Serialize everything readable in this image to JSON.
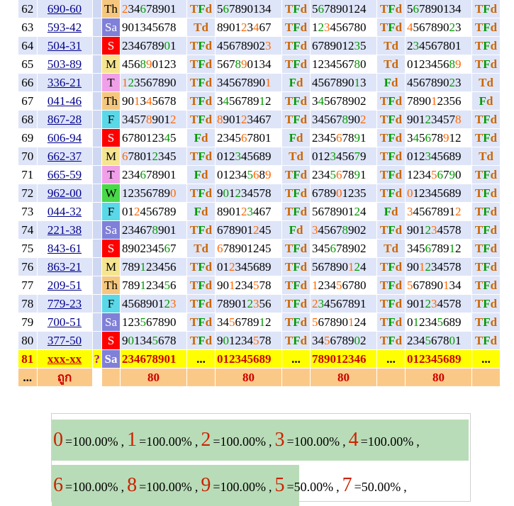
{
  "colors": {
    "tf_orange": "#cc6600",
    "tf_green": "#009900",
    "header_blue": "#dfe5f8",
    "pending_yellow": "#ffff00",
    "summary_orange": "#fbc987",
    "stat_green": "#b9dcb8"
  },
  "rows": [
    {
      "no": "62",
      "code": "690-60",
      "day": "Th",
      "day_class": "d-Th",
      "cols": [
        {
          "num": "234678901",
          "hl": [
            6,
            2
          ],
          "tf": "TFd"
        },
        {
          "num": "567890134",
          "hl": [
            6
          ],
          "tf": "TFd"
        },
        {
          "num": "567890124",
          "hl": [
            6
          ],
          "tf": "TFd"
        },
        {
          "num": "567890134",
          "hl": [
            6
          ],
          "tf": "TFd"
        }
      ]
    },
    {
      "no": "63",
      "code": "593-42",
      "day": "Sa",
      "day_class": "d-Sa",
      "cols": [
        {
          "num": "901345678",
          "hl": [],
          "tf": "Td"
        },
        {
          "num": "890123467",
          "hl": [
            4,
            2
          ],
          "tf": "TFd"
        },
        {
          "num": "123456780",
          "hl": [
            3,
            2
          ],
          "tf": "TFd"
        },
        {
          "num": "456789023",
          "hl": [
            4,
            2
          ],
          "tf": "TFd"
        }
      ]
    },
    {
      "no": "64",
      "code": "504-31",
      "day": "S",
      "day_class": "d-S",
      "cols": [
        {
          "num": "234678901",
          "hl": [
            0
          ],
          "tf": "TFd"
        },
        {
          "num": "456789023",
          "hl": [
            3
          ],
          "tf": "TFd"
        },
        {
          "num": "678901235",
          "hl": [
            3
          ],
          "tf": "Td"
        },
        {
          "num": "234567801",
          "hl": [
            3
          ],
          "tf": "TFd"
        }
      ]
    },
    {
      "no": "65",
      "code": "503-89",
      "day": "M",
      "day_class": "d-M",
      "cols": [
        {
          "num": "456890123",
          "hl": [
            8,
            9
          ],
          "tf": "TFd"
        },
        {
          "num": "567890134",
          "hl": [
            8,
            9
          ],
          "tf": "TFd"
        },
        {
          "num": "123456780",
          "hl": [
            8
          ],
          "tf": "Td"
        },
        {
          "num": "012345689",
          "hl": [
            8,
            9
          ],
          "tf": "TFd"
        }
      ]
    },
    {
      "no": "66",
      "code": "336-21",
      "day": "T",
      "day_class": "d-T",
      "cols": [
        {
          "num": "123567890",
          "hl": [
            1,
            2
          ],
          "tf": "TFd"
        },
        {
          "num": "345678901",
          "hl": [
            1
          ],
          "tf": "Fd"
        },
        {
          "num": "456789013",
          "hl": [
            1
          ],
          "tf": "Fd"
        },
        {
          "num": "456789023",
          "hl": [
            2
          ],
          "tf": "Td"
        }
      ]
    },
    {
      "no": "67",
      "code": "041-46",
      "day": "Th",
      "day_class": "d-Th",
      "cols": [
        {
          "num": "901345678",
          "hl": [
            4,
            1
          ],
          "tf": "TFd"
        },
        {
          "num": "345678912",
          "hl": [
            4,
            1
          ],
          "tf": "TFd"
        },
        {
          "num": "345678902",
          "hl": [
            4
          ],
          "tf": "TFd"
        },
        {
          "num": "789012356",
          "hl": [
            1
          ],
          "tf": "Fd"
        }
      ]
    },
    {
      "no": "68",
      "code": "867-28",
      "day": "F",
      "day_class": "d-F",
      "cols": [
        {
          "num": "345789012",
          "hl": [
            8,
            2
          ],
          "tf": "TFd"
        },
        {
          "num": "890123467",
          "hl": [
            8,
            2
          ],
          "tf": "TFd"
        },
        {
          "num": "345678902",
          "hl": [
            8,
            2
          ],
          "tf": "TFd"
        },
        {
          "num": "901234578",
          "hl": [
            2,
            8
          ],
          "tf": "TFd"
        }
      ]
    },
    {
      "no": "69",
      "code": "606-94",
      "day": "S",
      "day_class": "d-S",
      "cols": [
        {
          "num": "678012345",
          "hl": [
            4
          ],
          "tf": "Fd"
        },
        {
          "num": "234567801",
          "hl": [
            6
          ],
          "tf": "Fd"
        },
        {
          "num": "234567891",
          "hl": [
            6,
            9
          ],
          "tf": "TFd"
        },
        {
          "num": "345678912",
          "hl": [
            4,
            6,
            9
          ],
          "tf": "TFd"
        }
      ]
    },
    {
      "no": "70",
      "code": "662-37",
      "day": "M",
      "day_class": "d-M",
      "cols": [
        {
          "num": "678012345",
          "hl": [
            6,
            2
          ],
          "tf": "TFd"
        },
        {
          "num": "012345689",
          "hl": [
            3
          ],
          "tf": "Td"
        },
        {
          "num": "012345679",
          "hl": [
            3,
            7
          ],
          "tf": "TFd"
        },
        {
          "num": "012345689",
          "hl": [
            3
          ],
          "tf": "Td"
        }
      ]
    },
    {
      "no": "71",
      "code": "665-59",
      "day": "T",
      "day_class": "d-T",
      "cols": [
        {
          "num": "234678901",
          "hl": [
            6
          ],
          "tf": "Fd"
        },
        {
          "num": "012345689",
          "hl": [
            5,
            6,
            9
          ],
          "tf": "TFd"
        },
        {
          "num": "234567891",
          "hl": [
            5,
            6,
            9
          ],
          "tf": "TFd"
        },
        {
          "num": "123456790",
          "hl": [
            5,
            6,
            9
          ],
          "tf": "TFd"
        }
      ]
    },
    {
      "no": "72",
      "code": "962-00",
      "day": "W",
      "day_class": "d-W",
      "cols": [
        {
          "num": "123567890",
          "hl": [
            0
          ],
          "tf": "TFd"
        },
        {
          "num": "901234578",
          "hl": [
            0,
            2
          ],
          "tf": "TFd"
        },
        {
          "num": "678901235",
          "hl": [
            0
          ],
          "tf": "TFd"
        },
        {
          "num": "012345689",
          "hl": [
            0
          ],
          "tf": "TFd"
        }
      ]
    },
    {
      "no": "73",
      "code": "044-32",
      "day": "F",
      "day_class": "d-F",
      "cols": [
        {
          "num": "012456789",
          "hl": [
            2
          ],
          "tf": "Fd"
        },
        {
          "num": "890123467",
          "hl": [
            2,
            3
          ],
          "tf": "TFd"
        },
        {
          "num": "567890124",
          "hl": [
            2
          ],
          "tf": "Fd"
        },
        {
          "num": "345678912",
          "hl": [
            3,
            2
          ],
          "tf": "TFd"
        }
      ]
    },
    {
      "no": "74",
      "code": "221-38",
      "day": "Sa",
      "day_class": "d-Sa",
      "cols": [
        {
          "num": "234678901",
          "hl": [
            8
          ],
          "tf": "TFd"
        },
        {
          "num": "678901245",
          "hl": [
            2
          ],
          "tf": "Fd"
        },
        {
          "num": "345678902",
          "hl": [
            3,
            8
          ],
          "tf": "TFd"
        },
        {
          "num": "901234578",
          "hl": [
            2,
            3
          ],
          "tf": "TFd"
        }
      ]
    },
    {
      "no": "75",
      "code": "843-61",
      "day": "S",
      "day_class": "d-S",
      "cols": [
        {
          "num": "890234567",
          "hl": [
            6
          ],
          "tf": "Td"
        },
        {
          "num": "678901245",
          "hl": [
            6
          ],
          "tf": "TFd"
        },
        {
          "num": "345678902",
          "hl": [
            6
          ],
          "tf": "Td"
        },
        {
          "num": "345678912",
          "hl": [
            6,
            1
          ],
          "tf": "TFd"
        }
      ]
    },
    {
      "no": "76",
      "code": "863-21",
      "day": "M",
      "day_class": "d-M",
      "cols": [
        {
          "num": "789123456",
          "hl": [
            1
          ],
          "tf": "TFd"
        },
        {
          "num": "012345689",
          "hl": [
            2
          ],
          "tf": "TFd"
        },
        {
          "num": "567890124",
          "hl": [
            1,
            2
          ],
          "tf": "TFd"
        },
        {
          "num": "901234578",
          "hl": [
            1,
            2
          ],
          "tf": "TFd"
        }
      ]
    },
    {
      "no": "77",
      "code": "209-51",
      "day": "Th",
      "day_class": "d-Th",
      "cols": [
        {
          "num": "789123456",
          "hl": [
            5,
            1
          ],
          "tf": "TFd"
        },
        {
          "num": "901234578",
          "hl": [
            5,
            1
          ],
          "tf": "TFd"
        },
        {
          "num": "123456780",
          "hl": [
            5,
            1
          ],
          "tf": "TFd"
        },
        {
          "num": "567890134",
          "hl": [
            5,
            1
          ],
          "tf": "TFd"
        }
      ]
    },
    {
      "no": "78",
      "code": "779-23",
      "day": "F",
      "day_class": "d-F",
      "cols": [
        {
          "num": "456890123",
          "hl": [
            2,
            3
          ],
          "tf": "TFd"
        },
        {
          "num": "789012356",
          "hl": [
            2,
            3
          ],
          "tf": "TFd"
        },
        {
          "num": "234567891",
          "hl": [
            2,
            3
          ],
          "tf": "TFd"
        },
        {
          "num": "901234578",
          "hl": [
            2,
            3
          ],
          "tf": "TFd"
        }
      ]
    },
    {
      "no": "79",
      "code": "700-51",
      "day": "Sa",
      "day_class": "d-Sa",
      "cols": [
        {
          "num": "123567890",
          "hl": [
            5
          ],
          "tf": "TFd"
        },
        {
          "num": "345678912",
          "hl": [
            5,
            1
          ],
          "tf": "TFd"
        },
        {
          "num": "567890124",
          "hl": [
            5,
            1
          ],
          "tf": "TFd"
        },
        {
          "num": "012345689",
          "hl": [
            5,
            1
          ],
          "tf": "TFd"
        }
      ]
    },
    {
      "no": "80",
      "code": "377-50",
      "day": "S",
      "day_class": "d-S",
      "cols": [
        {
          "num": "901345678",
          "hl": [
            5,
            0
          ],
          "tf": "TFd"
        },
        {
          "num": "901234578",
          "hl": [
            5,
            0
          ],
          "tf": "TFd"
        },
        {
          "num": "345678902",
          "hl": [
            5,
            0
          ],
          "tf": "TFd"
        },
        {
          "num": "234567801",
          "hl": [
            5,
            0
          ],
          "tf": "TFd"
        }
      ]
    }
  ],
  "pending": {
    "no": "81",
    "code": "xxx-xx",
    "q": "?",
    "day": "Sa",
    "nums": [
      "234678901",
      "012345689",
      "789012346",
      "012345689"
    ],
    "dots": "..."
  },
  "summary": {
    "dots": "...",
    "label": "ถูก",
    "values": [
      "80",
      "80",
      "80",
      "80"
    ]
  },
  "stats_row1": [
    {
      "digit": "0",
      "pct": "=100.00%"
    },
    {
      "digit": "1",
      "pct": "=100.00%"
    },
    {
      "digit": "2",
      "pct": "=100.00%"
    },
    {
      "digit": "3",
      "pct": "=100.00%"
    },
    {
      "digit": "4",
      "pct": "=100.00%"
    }
  ],
  "stats_row2": [
    {
      "digit": "6",
      "pct": "=100.00%"
    },
    {
      "digit": "8",
      "pct": "=100.00%"
    },
    {
      "digit": "9",
      "pct": "=100.00%"
    },
    {
      "digit": "5",
      "pct": "=50.00%"
    },
    {
      "digit": "7",
      "pct": "=50.00%"
    }
  ],
  "stats_sep": ","
}
